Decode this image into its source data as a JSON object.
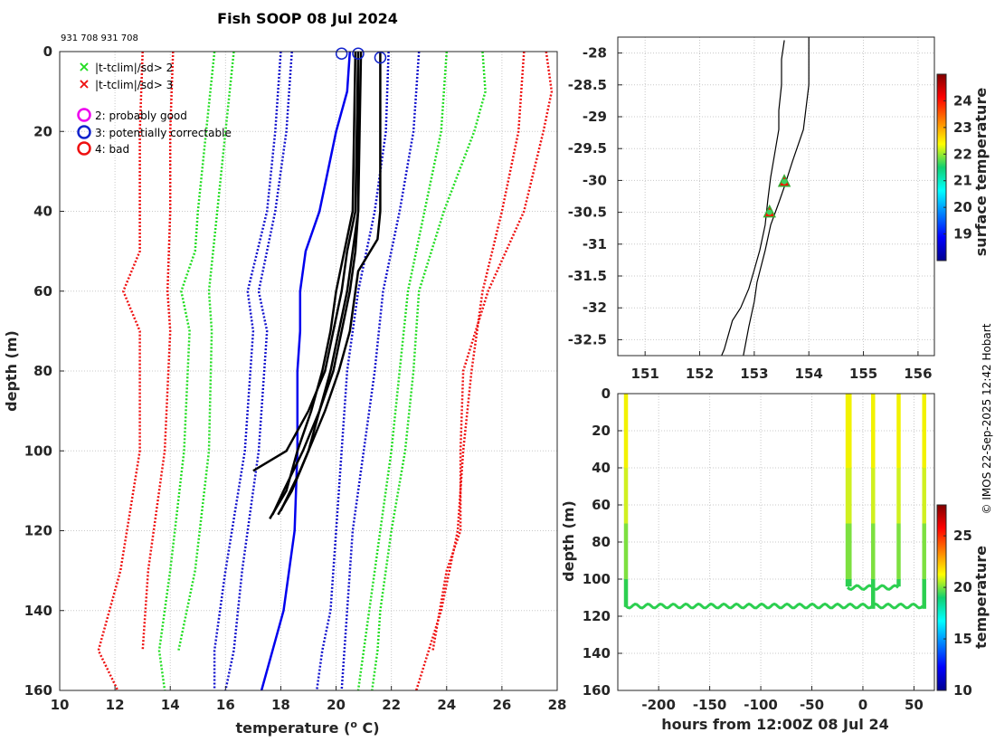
{
  "title": "Fish SOOP 08 Jul 2024",
  "callsigns": "931 708 931 708",
  "credit": "© IMOS 22-Sep-2025 12:42 Hobart",
  "colors": {
    "threshold2": "#22dd22",
    "threshold3": "#ee1111",
    "flag2": "#ee00ee",
    "flag3": "#1122cc",
    "flag4": "#ee1111",
    "climatology_blue": "#1010cc",
    "profile_black": "#000000",
    "profile_blue": "#0000ee"
  },
  "legend": {
    "items": [
      {
        "marker": "x",
        "color": "#22dd22",
        "label": "|t-tclim|/sd> 2"
      },
      {
        "marker": "x",
        "color": "#ee1111",
        "label": "|t-tclim|/sd> 3"
      },
      {
        "marker": "o",
        "color": "#ee00ee",
        "label": "2: probably good"
      },
      {
        "marker": "o",
        "color": "#1122cc",
        "label": "3: potentially correctable"
      },
      {
        "marker": "o",
        "color": "#ee1111",
        "label": "4: bad"
      }
    ]
  },
  "chart_data": [
    {
      "type": "line",
      "title": "Fish SOOP 08 Jul 2024",
      "xlabel": "temperature (o C)",
      "ylabel": "depth (m)",
      "xlim": [
        10,
        28
      ],
      "ylim": [
        0,
        160
      ],
      "y_reversed": true,
      "xticks": [
        10,
        12,
        14,
        16,
        18,
        20,
        22,
        24,
        26,
        28
      ],
      "yticks": [
        0,
        20,
        40,
        60,
        80,
        100,
        120,
        140,
        160
      ],
      "climatology_envelopes": [
        {
          "name": "red-left",
          "color": "#ee1111",
          "depth": [
            0,
            20,
            40,
            50,
            60,
            70,
            100,
            130,
            150,
            160
          ],
          "temp": [
            13.0,
            12.9,
            12.9,
            12.9,
            12.3,
            12.9,
            12.9,
            12.2,
            11.4,
            12.1
          ]
        },
        {
          "name": "red-left-2",
          "color": "#ee1111",
          "depth": [
            0,
            20,
            40,
            60,
            70,
            100,
            130,
            150
          ],
          "temp": [
            14.1,
            14.0,
            14.0,
            13.9,
            14.0,
            13.8,
            13.2,
            13.0
          ]
        },
        {
          "name": "green-left",
          "color": "#22dd22",
          "depth": [
            0,
            20,
            40,
            50,
            60,
            70,
            100,
            130,
            150,
            160
          ],
          "temp": [
            15.6,
            15.3,
            15.0,
            14.9,
            14.4,
            14.7,
            14.5,
            14.0,
            13.6,
            13.8
          ]
        },
        {
          "name": "green-left-2",
          "color": "#22dd22",
          "depth": [
            0,
            20,
            40,
            60,
            70,
            100,
            130,
            150
          ],
          "temp": [
            16.3,
            16.0,
            15.7,
            15.4,
            15.5,
            15.4,
            14.9,
            14.3
          ]
        },
        {
          "name": "blue-left",
          "color": "#1010cc",
          "depth": [
            0,
            20,
            40,
            60,
            70,
            100,
            130,
            150,
            160
          ],
          "temp": [
            18.0,
            17.8,
            17.5,
            16.8,
            17.0,
            16.7,
            16.0,
            15.6,
            15.6
          ]
        },
        {
          "name": "blue-left-2",
          "color": "#1010cc",
          "depth": [
            0,
            20,
            40,
            60,
            70,
            100,
            130,
            150,
            160
          ],
          "temp": [
            18.4,
            18.2,
            17.8,
            17.2,
            17.5,
            17.2,
            16.6,
            16.3,
            16.0
          ]
        },
        {
          "name": "blue-right",
          "color": "#1010cc",
          "depth": [
            0,
            20,
            40,
            60,
            80,
            100,
            120,
            140,
            150,
            160
          ],
          "temp": [
            21.9,
            21.8,
            21.4,
            20.8,
            20.4,
            20.2,
            20.0,
            19.8,
            19.5,
            19.3
          ]
        },
        {
          "name": "blue-right-2",
          "color": "#1010cc",
          "depth": [
            0,
            20,
            40,
            60,
            80,
            100,
            120,
            140,
            160
          ],
          "temp": [
            23.0,
            22.8,
            22.3,
            21.7,
            21.4,
            21.0,
            20.6,
            20.4,
            20.2
          ]
        },
        {
          "name": "green-right",
          "color": "#22dd22",
          "depth": [
            0,
            10,
            20,
            40,
            60,
            80,
            100,
            120,
            140,
            150,
            160
          ],
          "temp": [
            25.3,
            25.4,
            25.0,
            23.9,
            23.0,
            22.8,
            22.5,
            22.0,
            21.6,
            21.5,
            21.3
          ]
        },
        {
          "name": "green-right-2",
          "color": "#22dd22",
          "depth": [
            0,
            20,
            40,
            60,
            80,
            100,
            120,
            140,
            160
          ],
          "temp": [
            24.0,
            23.8,
            23.2,
            22.6,
            22.3,
            22.0,
            21.6,
            21.2,
            20.8
          ]
        },
        {
          "name": "red-right",
          "color": "#ee1111",
          "depth": [
            0,
            10,
            20,
            40,
            60,
            80,
            100,
            120,
            130,
            150
          ],
          "temp": [
            27.6,
            27.8,
            27.5,
            26.8,
            25.5,
            24.6,
            24.5,
            24.5,
            24.0,
            23.5
          ]
        },
        {
          "name": "red-right-2",
          "color": "#ee1111",
          "depth": [
            0,
            20,
            40,
            60,
            80,
            100,
            120,
            140,
            160
          ],
          "temp": [
            26.8,
            26.6,
            26.0,
            25.3,
            24.9,
            24.6,
            24.4,
            23.8,
            22.9
          ]
        }
      ],
      "profiles_black": [
        {
          "depth": [
            0,
            40,
            50,
            60,
            70,
            80,
            90,
            100,
            105
          ],
          "temp": [
            20.8,
            20.7,
            20.4,
            20.2,
            19.9,
            19.6,
            19.0,
            18.2,
            17.0
          ]
        },
        {
          "depth": [
            0,
            40,
            50,
            60,
            70,
            80,
            90,
            100,
            105,
            115
          ],
          "temp": [
            20.9,
            20.8,
            20.6,
            20.4,
            20.1,
            19.8,
            19.4,
            19.0,
            18.7,
            18.0
          ]
        },
        {
          "depth": [
            0,
            40,
            50,
            60,
            70,
            80,
            90,
            100,
            110,
            117
          ],
          "temp": [
            20.7,
            20.6,
            20.3,
            20.0,
            19.8,
            19.5,
            19.1,
            18.6,
            18.2,
            17.6
          ]
        },
        {
          "depth": [
            0,
            40,
            47,
            55,
            70,
            80,
            90,
            100,
            110,
            116
          ],
          "temp": [
            21.6,
            21.6,
            21.5,
            20.8,
            20.5,
            20.1,
            19.6,
            19.0,
            18.4,
            17.9
          ]
        },
        {
          "depth": [
            2,
            40,
            50,
            60,
            70,
            80,
            90,
            100,
            110,
            116
          ],
          "temp": [
            20.8,
            20.8,
            20.7,
            20.5,
            20.2,
            19.9,
            19.4,
            18.8,
            18.1,
            17.7
          ]
        }
      ],
      "profile_blue": {
        "depth": [
          0,
          10,
          20,
          40,
          50,
          60,
          70,
          80,
          100,
          120,
          140,
          150,
          160
        ],
        "temp": [
          20.5,
          20.4,
          20.0,
          19.4,
          18.9,
          18.7,
          18.7,
          18.6,
          18.6,
          18.5,
          18.1,
          17.7,
          17.3
        ]
      },
      "flag_circles": [
        {
          "flag": 3,
          "temp": 20.2,
          "depth": 0.5
        },
        {
          "flag": 3,
          "temp": 20.8,
          "depth": 0.5
        },
        {
          "flag": 3,
          "temp": 21.6,
          "depth": 1.5
        }
      ]
    },
    {
      "type": "scatter",
      "xlim": [
        150.5,
        156.3
      ],
      "ylim": [
        -32.75,
        -27.75
      ],
      "xticks": [
        151,
        152,
        153,
        154,
        155,
        156
      ],
      "yticks": [
        -28,
        -28.5,
        -29,
        -29.5,
        -30,
        -30.5,
        -31,
        -31.5,
        -32,
        -32.5
      ],
      "colorbar": {
        "label": "surface temperature",
        "range": [
          18,
          25
        ],
        "ticks": [
          19,
          20,
          21,
          22,
          23,
          24
        ]
      },
      "coastline": {
        "lon": [
          153.55,
          153.5,
          153.5,
          153.45,
          153.45,
          153.4,
          153.35,
          153.3,
          153.25,
          153.2,
          153.1,
          153.0,
          152.9,
          152.75,
          152.6,
          152.5,
          152.45,
          152.4
        ],
        "lat": [
          -27.8,
          -28.1,
          -28.5,
          -28.9,
          -29.2,
          -29.45,
          -29.7,
          -29.95,
          -30.3,
          -30.7,
          -31.1,
          -31.4,
          -31.7,
          -32.0,
          -32.2,
          -32.5,
          -32.65,
          -32.75
        ]
      },
      "track": {
        "lon": [
          154.0,
          154.0,
          153.9,
          153.7,
          153.55,
          153.45,
          153.3,
          153.2,
          153.05,
          153.0,
          152.9,
          152.8
        ],
        "lat": [
          -27.75,
          -28.5,
          -29.2,
          -29.7,
          -30.1,
          -30.35,
          -30.7,
          -31.1,
          -31.6,
          -31.9,
          -32.3,
          -32.75
        ]
      },
      "points": [
        {
          "lon": 153.55,
          "lat": -30.02,
          "sst": 20.4
        },
        {
          "lon": 153.28,
          "lat": -30.5,
          "sst": 20.4
        }
      ]
    },
    {
      "type": "scatter",
      "xlabel": "hours from 12:00Z 08 Jul 24",
      "ylabel": "depth (m)",
      "xlim": [
        -240,
        70
      ],
      "ylim": [
        0,
        160
      ],
      "y_reversed": true,
      "xticks": [
        -200,
        -150,
        -100,
        -50,
        0,
        50
      ],
      "yticks": [
        0,
        20,
        40,
        60,
        80,
        100,
        120,
        140,
        160
      ],
      "colorbar": {
        "label": "temperature",
        "range": [
          10,
          28
        ],
        "ticks": [
          10,
          15,
          20,
          25
        ]
      },
      "casts": [
        {
          "hour": -232,
          "max_depth": 115
        },
        {
          "hour": -15,
          "max_depth": 104
        },
        {
          "hour": -13,
          "max_depth": 104
        },
        {
          "hour": 10,
          "max_depth": 116
        },
        {
          "hour": 35,
          "max_depth": 104
        },
        {
          "hour": 60,
          "max_depth": 116
        }
      ],
      "near_bottom_tracks": [
        {
          "depth_mean": 114.5,
          "hours": [
            -232,
            60
          ]
        },
        {
          "depth_mean": 104.5,
          "hours": [
            -15,
            35
          ]
        }
      ]
    }
  ]
}
